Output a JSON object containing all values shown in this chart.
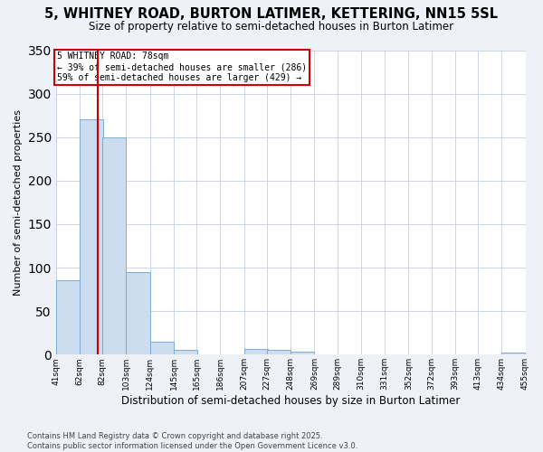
{
  "title": "5, WHITNEY ROAD, BURTON LATIMER, KETTERING, NN15 5SL",
  "subtitle": "Size of property relative to semi-detached houses in Burton Latimer",
  "xlabel": "Distribution of semi-detached houses by size in Burton Latimer",
  "ylabel": "Number of semi-detached properties",
  "bin_labels": [
    "41sqm",
    "62sqm",
    "82sqm",
    "103sqm",
    "124sqm",
    "145sqm",
    "165sqm",
    "186sqm",
    "207sqm",
    "227sqm",
    "248sqm",
    "269sqm",
    "289sqm",
    "310sqm",
    "331sqm",
    "352sqm",
    "372sqm",
    "393sqm",
    "413sqm",
    "434sqm",
    "455sqm"
  ],
  "bin_edges": [
    41,
    62,
    82,
    103,
    124,
    145,
    165,
    186,
    207,
    227,
    248,
    269,
    289,
    310,
    331,
    352,
    372,
    393,
    413,
    434,
    455
  ],
  "bar_heights": [
    86,
    270,
    250,
    95,
    15,
    5,
    0,
    0,
    7,
    6,
    3,
    0,
    0,
    0,
    0,
    0,
    0,
    0,
    0,
    2
  ],
  "bar_color": "#cddcee",
  "bar_edge_color": "#7badd4",
  "property_size": 78,
  "property_label": "5 WHITNEY ROAD: 78sqm",
  "annotation_line1": "← 39% of semi-detached houses are smaller (286)",
  "annotation_line2": "59% of semi-detached houses are larger (429) →",
  "red_line_color": "#cc0000",
  "annotation_box_edge": "#cc0000",
  "ylim": [
    0,
    350
  ],
  "yticks": [
    0,
    50,
    100,
    150,
    200,
    250,
    300,
    350
  ],
  "footer_line1": "Contains HM Land Registry data © Crown copyright and database right 2025.",
  "footer_line2": "Contains public sector information licensed under the Open Government Licence v3.0.",
  "bg_color": "#eef2f8",
  "plot_bg_color": "#ffffff",
  "grid_color": "#c5d0e0"
}
